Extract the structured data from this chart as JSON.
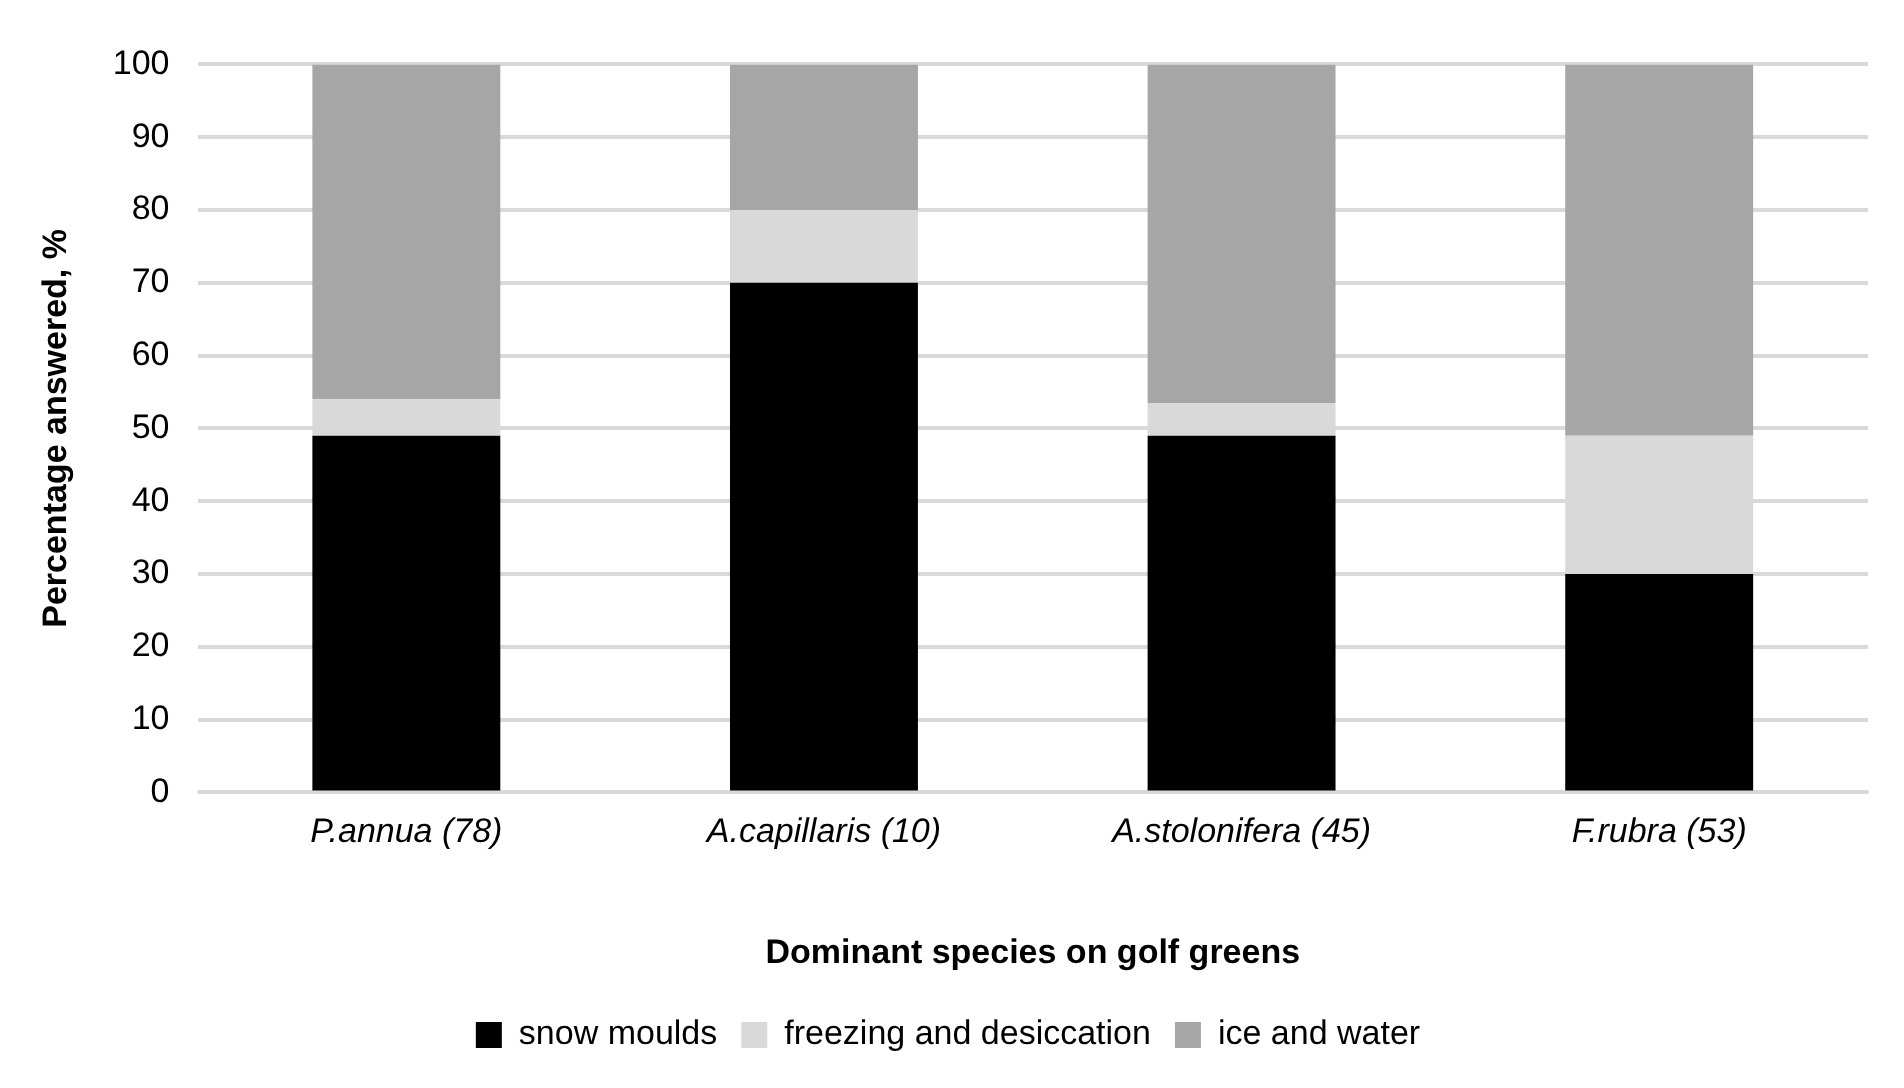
{
  "chart_data": {
    "type": "bar",
    "stacked": true,
    "xlabel": "Dominant species on golf greens",
    "ylabel": "Percentage answered, %",
    "categories": [
      "P.annua (78)",
      "A.capillaris (10)",
      "A.stolonifera (45)",
      "F.rubra (53)"
    ],
    "series": [
      {
        "name": "snow moulds",
        "color": "#000000",
        "values": [
          49,
          70,
          49,
          30
        ]
      },
      {
        "name": "freezing and desiccation",
        "color": "#d9d9d9",
        "values": [
          5,
          10,
          4.5,
          19
        ]
      },
      {
        "name": "ice and water",
        "color": "#a6a6a6",
        "values": [
          46,
          20,
          46.5,
          51
        ]
      }
    ],
    "ylim": [
      0,
      100
    ],
    "yticks": [
      0,
      10,
      20,
      30,
      40,
      50,
      60,
      70,
      80,
      90,
      100
    ],
    "grid": "y",
    "legend": "bottom"
  }
}
